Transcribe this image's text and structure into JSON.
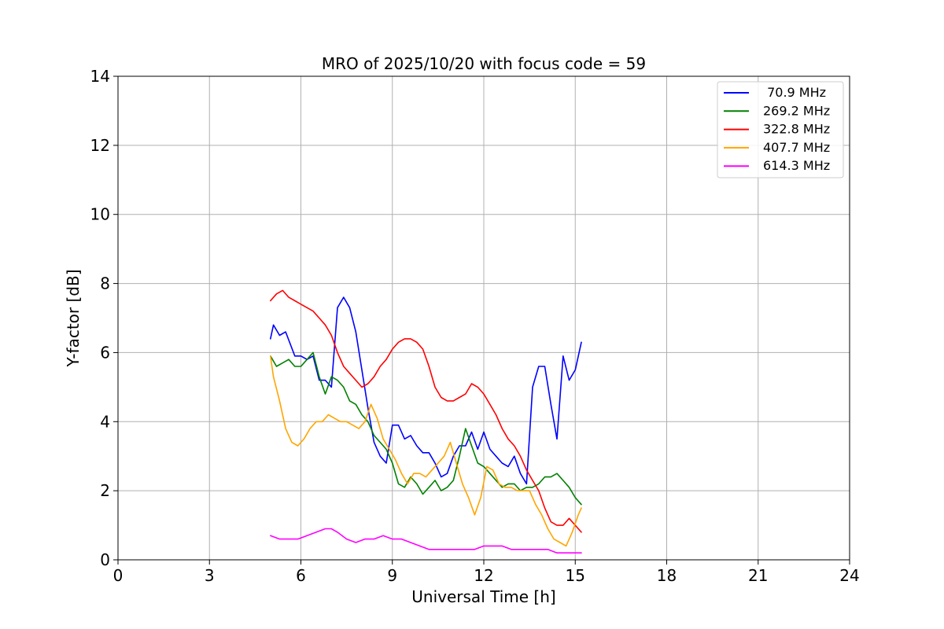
{
  "chart_data": {
    "type": "line",
    "title": "MRO of 2025/10/20 with focus code = 59",
    "xlabel": "Universal Time [h]",
    "ylabel": "Y-factor [dB]",
    "xlim": [
      0,
      24
    ],
    "ylim": [
      0,
      14
    ],
    "xticks": [
      0,
      3,
      6,
      9,
      12,
      15,
      18,
      21,
      24
    ],
    "yticks": [
      0,
      2,
      4,
      6,
      8,
      10,
      12,
      14
    ],
    "grid": true,
    "legend_position": "top-right",
    "series": [
      {
        "name": " 70.9 MHz",
        "color": "#0000ff",
        "x": [
          5.0,
          5.1,
          5.3,
          5.5,
          5.8,
          6.0,
          6.2,
          6.4,
          6.6,
          6.8,
          7.0,
          7.2,
          7.4,
          7.6,
          7.8,
          8.0,
          8.2,
          8.4,
          8.6,
          8.8,
          9.0,
          9.2,
          9.4,
          9.6,
          9.8,
          10.0,
          10.2,
          10.4,
          10.6,
          10.8,
          11.0,
          11.2,
          11.4,
          11.6,
          11.8,
          12.0,
          12.2,
          12.4,
          12.6,
          12.8,
          13.0,
          13.2,
          13.4,
          13.6,
          13.8,
          14.0,
          14.2,
          14.4,
          14.6,
          14.8,
          15.0,
          15.2
        ],
        "y": [
          6.4,
          6.8,
          6.5,
          6.6,
          5.9,
          5.9,
          5.8,
          5.9,
          5.2,
          5.2,
          5.0,
          7.3,
          7.6,
          7.3,
          6.6,
          5.5,
          4.4,
          3.4,
          3.0,
          2.8,
          3.9,
          3.9,
          3.5,
          3.6,
          3.3,
          3.1,
          3.1,
          2.8,
          2.4,
          2.5,
          3.0,
          3.3,
          3.3,
          3.7,
          3.2,
          3.7,
          3.2,
          3.0,
          2.8,
          2.7,
          3.0,
          2.5,
          2.2,
          5.0,
          5.6,
          5.6,
          4.5,
          3.5,
          5.9,
          5.2,
          5.5,
          6.3
        ]
      },
      {
        "name": "269.2 MHz",
        "color": "#008000",
        "x": [
          5.0,
          5.2,
          5.4,
          5.6,
          5.8,
          6.0,
          6.2,
          6.4,
          6.6,
          6.8,
          7.0,
          7.2,
          7.4,
          7.6,
          7.8,
          8.0,
          8.2,
          8.4,
          8.6,
          8.8,
          9.0,
          9.2,
          9.4,
          9.6,
          9.8,
          10.0,
          10.2,
          10.4,
          10.6,
          10.8,
          11.0,
          11.2,
          11.4,
          11.6,
          11.8,
          12.0,
          12.2,
          12.4,
          12.6,
          12.8,
          13.0,
          13.2,
          13.4,
          13.6,
          13.8,
          14.0,
          14.2,
          14.4,
          14.6,
          14.8,
          15.0,
          15.2
        ],
        "y": [
          5.9,
          5.6,
          5.7,
          5.8,
          5.6,
          5.6,
          5.8,
          6.0,
          5.3,
          4.8,
          5.3,
          5.2,
          5.0,
          4.6,
          4.5,
          4.2,
          4.0,
          3.6,
          3.4,
          3.2,
          2.8,
          2.2,
          2.1,
          2.4,
          2.2,
          1.9,
          2.1,
          2.3,
          2.0,
          2.1,
          2.3,
          3.0,
          3.8,
          3.3,
          2.8,
          2.7,
          2.5,
          2.3,
          2.1,
          2.2,
          2.2,
          2.0,
          2.1,
          2.1,
          2.2,
          2.4,
          2.4,
          2.5,
          2.3,
          2.1,
          1.8,
          1.6
        ]
      },
      {
        "name": "322.8 MHz",
        "color": "#ff0000",
        "x": [
          5.0,
          5.2,
          5.4,
          5.6,
          5.8,
          6.0,
          6.2,
          6.4,
          6.6,
          6.8,
          7.0,
          7.2,
          7.4,
          7.6,
          7.8,
          8.0,
          8.2,
          8.4,
          8.6,
          8.8,
          9.0,
          9.2,
          9.4,
          9.6,
          9.8,
          10.0,
          10.2,
          10.4,
          10.6,
          10.8,
          11.0,
          11.2,
          11.4,
          11.6,
          11.8,
          12.0,
          12.2,
          12.4,
          12.6,
          12.8,
          13.0,
          13.2,
          13.4,
          13.6,
          13.8,
          14.0,
          14.2,
          14.4,
          14.6,
          14.8,
          15.0,
          15.2
        ],
        "y": [
          7.5,
          7.7,
          7.8,
          7.6,
          7.5,
          7.4,
          7.3,
          7.2,
          7.0,
          6.8,
          6.5,
          6.0,
          5.6,
          5.4,
          5.2,
          5.0,
          5.1,
          5.3,
          5.6,
          5.8,
          6.1,
          6.3,
          6.4,
          6.4,
          6.3,
          6.1,
          5.6,
          5.0,
          4.7,
          4.6,
          4.6,
          4.7,
          4.8,
          5.1,
          5.0,
          4.8,
          4.5,
          4.2,
          3.8,
          3.5,
          3.3,
          3.0,
          2.6,
          2.3,
          2.0,
          1.5,
          1.1,
          1.0,
          1.0,
          1.2,
          1.0,
          0.8
        ]
      },
      {
        "name": "407.7 MHz",
        "color": "#ffa500",
        "x": [
          5.0,
          5.1,
          5.3,
          5.5,
          5.7,
          5.9,
          6.1,
          6.3,
          6.5,
          6.7,
          6.9,
          7.1,
          7.3,
          7.5,
          7.7,
          7.9,
          8.1,
          8.3,
          8.5,
          8.7,
          8.9,
          9.1,
          9.3,
          9.5,
          9.7,
          9.9,
          10.1,
          10.3,
          10.5,
          10.7,
          10.9,
          11.1,
          11.3,
          11.5,
          11.7,
          11.9,
          12.1,
          12.3,
          12.5,
          12.7,
          12.9,
          13.1,
          13.3,
          13.5,
          13.7,
          13.9,
          14.1,
          14.3,
          14.5,
          14.7,
          14.9,
          15.1,
          15.2
        ],
        "y": [
          5.9,
          5.3,
          4.6,
          3.8,
          3.4,
          3.3,
          3.5,
          3.8,
          4.0,
          4.0,
          4.2,
          4.1,
          4.0,
          4.0,
          3.9,
          3.8,
          4.0,
          4.5,
          4.1,
          3.5,
          3.2,
          2.9,
          2.5,
          2.2,
          2.5,
          2.5,
          2.4,
          2.6,
          2.8,
          3.0,
          3.4,
          2.8,
          2.2,
          1.8,
          1.3,
          1.8,
          2.7,
          2.6,
          2.2,
          2.1,
          2.1,
          2.0,
          2.0,
          2.0,
          1.6,
          1.3,
          0.9,
          0.6,
          0.5,
          0.4,
          0.8,
          1.3,
          1.5
        ]
      },
      {
        "name": "614.3 MHz",
        "color": "#ff00ff",
        "x": [
          5.0,
          5.3,
          5.6,
          5.9,
          6.2,
          6.5,
          6.8,
          7.0,
          7.2,
          7.5,
          7.8,
          8.1,
          8.4,
          8.7,
          9.0,
          9.3,
          9.6,
          9.9,
          10.2,
          10.5,
          10.8,
          11.1,
          11.4,
          11.7,
          12.0,
          12.3,
          12.6,
          12.9,
          13.2,
          13.5,
          13.8,
          14.1,
          14.4,
          14.7,
          15.0,
          15.2
        ],
        "y": [
          0.7,
          0.6,
          0.6,
          0.6,
          0.7,
          0.8,
          0.9,
          0.9,
          0.8,
          0.6,
          0.5,
          0.6,
          0.6,
          0.7,
          0.6,
          0.6,
          0.5,
          0.4,
          0.3,
          0.3,
          0.3,
          0.3,
          0.3,
          0.3,
          0.4,
          0.4,
          0.4,
          0.3,
          0.3,
          0.3,
          0.3,
          0.3,
          0.2,
          0.2,
          0.2,
          0.2
        ]
      }
    ]
  }
}
